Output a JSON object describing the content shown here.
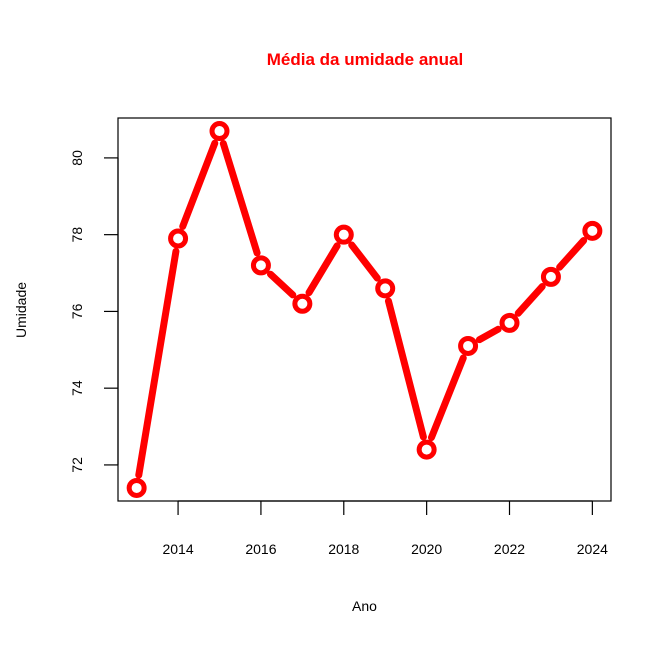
{
  "chart_data": {
    "type": "line",
    "title": "Média da umidade anual",
    "xlabel": "Ano",
    "ylabel": "Umidade",
    "x": [
      2013,
      2014,
      2015,
      2016,
      2017,
      2018,
      2019,
      2020,
      2021,
      2022,
      2023,
      2024
    ],
    "series": [
      {
        "values": [
          71.4,
          77.9,
          80.7,
          77.2,
          76.2,
          78.0,
          76.6,
          72.4,
          75.1,
          75.7,
          76.9,
          78.1
        ]
      }
    ],
    "xticks": [
      "2014",
      "2016",
      "2018",
      "2020",
      "2022",
      "2024"
    ],
    "yticks": [
      "72",
      "74",
      "76",
      "78",
      "80"
    ],
    "xlim": [
      2012.55,
      2024.45
    ],
    "ylim": [
      71.06,
      81.04
    ],
    "grid": false,
    "colors": {
      "line": "#ff0000",
      "title": "#ff0000",
      "point_center": "#ffffff"
    }
  }
}
